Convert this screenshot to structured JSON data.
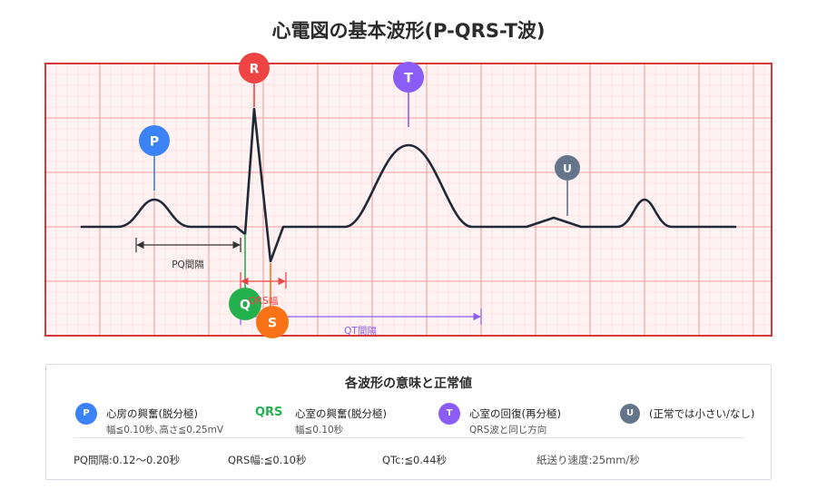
{
  "title": "心電図の基本波形(P-QRS-T波)",
  "waves": {
    "p": {
      "letter": "P",
      "color": "#3b82f6"
    },
    "r": {
      "letter": "R",
      "color": "#ef4444"
    },
    "t": {
      "letter": "T",
      "color": "#8b5cf6"
    },
    "u": {
      "letter": "U",
      "color": "#64748b"
    },
    "q": {
      "letter": "Q",
      "color": "#22b14c"
    },
    "s": {
      "letter": "S",
      "color": "#f97316"
    }
  },
  "intervals": {
    "pq": "PQ間隔",
    "qrs": "QRS幅",
    "qt": "QT間隔"
  },
  "legend": {
    "title": "各波形の意味と正常値",
    "items": [
      {
        "badge": "P",
        "main": "心房の興奮(脱分極)",
        "sub": "幅≦0.10秒､高さ≦0.25mV"
      },
      {
        "badge": "QRS",
        "main": "心室の興奮(脱分極)",
        "sub": "幅≦0.10秒"
      },
      {
        "badge": "T",
        "main": "心室の回復(再分極)",
        "sub": "QRS波と同じ方向"
      },
      {
        "badge": "U",
        "main": "(正常では小さい/なし)",
        "sub": ""
      }
    ],
    "footer": {
      "pq": "PQ間隔:0.12〜0.20秒",
      "qrs": "QRS幅:≦0.10秒",
      "qtc": "QTc:≦0.44秒",
      "speed": "紙送り速度:25mm/秒"
    }
  },
  "colors": {
    "grid_major": "#f0a0a0",
    "grid_minor": "#fbd5d5",
    "grid_bg": "#fff2f2",
    "frame": "#d9383a",
    "trace": "#1f2937",
    "interval_dark": "#333333",
    "interval_red": "#ef4444",
    "interval_purple": "#8b5cf6"
  }
}
